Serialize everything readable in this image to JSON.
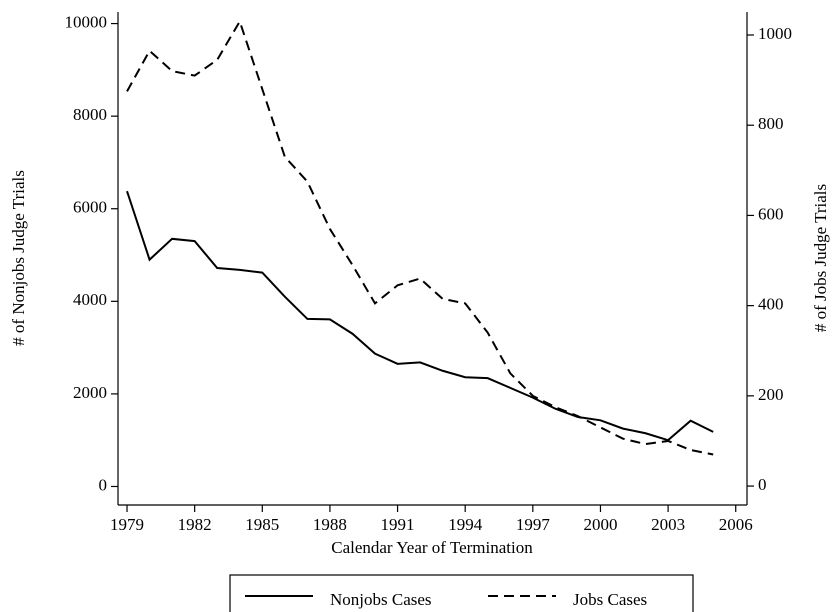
{
  "chart_data": {
    "type": "line",
    "x_label": "Calendar Year of Termination",
    "y_label": "# of Nonjobs Judge Trials",
    "y2_label": "# of Jobs Judge Trials",
    "x": [
      1979,
      1980,
      1981,
      1982,
      1983,
      1984,
      1985,
      1986,
      1987,
      1988,
      1989,
      1990,
      1991,
      1992,
      1993,
      1994,
      1995,
      1996,
      1997,
      1998,
      1999,
      2000,
      2001,
      2002,
      2003,
      2004,
      2005
    ],
    "series": [
      {
        "name": "Nonjobs Cases",
        "color": "#000000",
        "style": "solid",
        "values": [
          6380,
          4900,
          5350,
          5300,
          4720,
          4680,
          4620,
          4100,
          3620,
          3610,
          3300,
          2870,
          2650,
          2680,
          2500,
          2360,
          2340,
          2130,
          1920,
          1680,
          1500,
          1430,
          1250,
          1150,
          1000,
          1420,
          1180
        ]
      },
      {
        "name": "Jobs Cases",
        "color": "#000000",
        "style": "dashed",
        "axis": "y2",
        "values": [
          875,
          965,
          920,
          910,
          945,
          1030,
          880,
          730,
          675,
          570,
          490,
          405,
          445,
          460,
          415,
          405,
          340,
          250,
          200,
          175,
          155,
          130,
          105,
          93,
          100,
          80,
          70
        ]
      }
    ],
    "xlim": [
      1978.6,
      2006.5
    ],
    "xticks": [
      1979,
      1982,
      1985,
      1988,
      1991,
      1994,
      1997,
      2000,
      2003,
      2006
    ],
    "ylim": [
      -400,
      10250
    ],
    "yticks": [
      0,
      2000,
      4000,
      6000,
      8000,
      10000
    ],
    "y2lim": [
      -42,
      1051
    ],
    "y2ticks": [
      0,
      200,
      400,
      600,
      800,
      1000
    ],
    "legend": "bottom"
  }
}
